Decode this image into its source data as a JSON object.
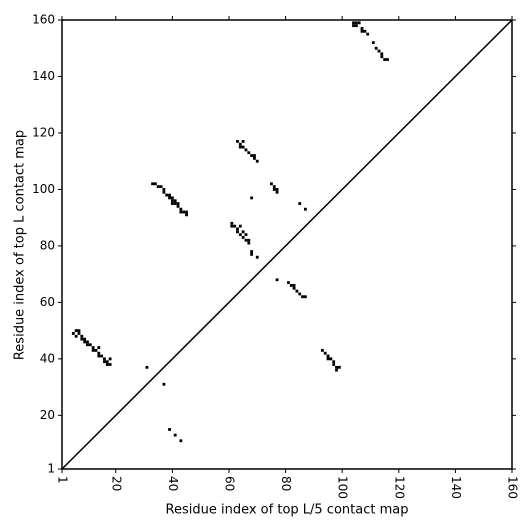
{
  "chart_data": {
    "type": "scatter",
    "xlabel": "Residue index of top L/5 contact map",
    "ylabel": "Residue index of top L contact map",
    "color": "#000000",
    "x": [
      5,
      6,
      7,
      7,
      8,
      9,
      10,
      11,
      12,
      13,
      14,
      15,
      16,
      17,
      18,
      6,
      8,
      10,
      12,
      14,
      16,
      17,
      18,
      14,
      9,
      31,
      37,
      39,
      41,
      43,
      33,
      34,
      35,
      36,
      37,
      37,
      38,
      39,
      39,
      40,
      40,
      41,
      41,
      42,
      42,
      43,
      43,
      44,
      45,
      45,
      40,
      61,
      61,
      62,
      63,
      64,
      63,
      64,
      65,
      65,
      66,
      66,
      67,
      67,
      68,
      68,
      70,
      68,
      63,
      64,
      65,
      65,
      66,
      67,
      68,
      69,
      69,
      70,
      64,
      75,
      76,
      76,
      77,
      77,
      85,
      87,
      77,
      81,
      82,
      83,
      84,
      85,
      86,
      87,
      83,
      93,
      94,
      95,
      95,
      96,
      97,
      97,
      98,
      99,
      98,
      104,
      104,
      105,
      106,
      107,
      107,
      108,
      109,
      111,
      112,
      113,
      114,
      114,
      115,
      116,
      105
    ],
    "y": [
      49,
      50,
      50,
      49,
      48,
      47,
      46,
      45,
      44,
      43,
      42,
      41,
      40,
      39,
      38,
      48,
      47,
      45,
      43,
      41,
      39,
      38,
      40,
      44,
      46,
      37,
      31,
      15,
      13,
      11,
      102,
      102,
      101,
      101,
      100,
      99,
      98,
      98,
      97,
      97,
      96,
      96,
      95,
      95,
      94,
      93,
      92,
      92,
      92,
      91,
      95,
      88,
      87,
      87,
      86,
      87,
      85,
      84,
      85,
      83,
      84,
      82,
      82,
      81,
      78,
      77,
      76,
      97,
      117,
      116,
      117,
      115,
      114,
      113,
      112,
      112,
      111,
      110,
      115,
      102,
      101,
      100,
      99,
      100,
      95,
      93,
      68,
      67,
      66,
      65,
      64,
      63,
      62,
      62,
      66,
      43,
      42,
      41,
      40,
      40,
      39,
      38,
      37,
      37,
      36,
      159,
      158,
      158,
      159,
      157,
      156,
      156,
      155,
      152,
      150,
      149,
      148,
      147,
      146,
      146,
      159
    ],
    "xlim": [
      1,
      160
    ],
    "ylim": [
      1,
      160
    ],
    "xticks": [
      1,
      20,
      40,
      60,
      80,
      100,
      120,
      140,
      160
    ],
    "yticks": [
      1,
      20,
      40,
      60,
      80,
      100,
      120,
      140,
      160
    ],
    "grid": false
  }
}
